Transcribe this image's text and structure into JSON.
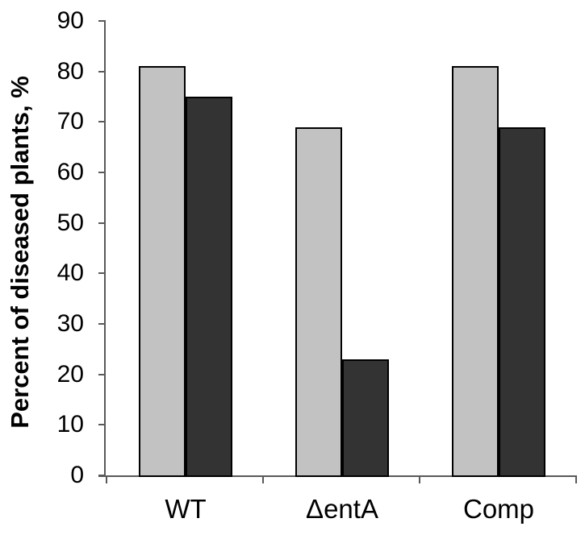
{
  "chart_data": {
    "type": "bar",
    "title": "",
    "xlabel": "",
    "ylabel": "Percent of diseased plants, %",
    "categories": [
      "WT",
      "ΔentA",
      "Comp"
    ],
    "series": [
      {
        "name": "light-gray-bars",
        "color": "#c2c2c2",
        "values": [
          81,
          69,
          81
        ]
      },
      {
        "name": "dark-gray-bars",
        "color": "#333333",
        "values": [
          75,
          23,
          69
        ]
      }
    ],
    "ylim": [
      0,
      90
    ],
    "ytick_step": 10,
    "ytick_labels": [
      "0",
      "10",
      "20",
      "30",
      "40",
      "50",
      "60",
      "70",
      "80",
      "90"
    ],
    "grid": false,
    "legend": false,
    "bar_border_color": "#000000",
    "axis_color": "#595959",
    "background_color": "#ffffff"
  }
}
